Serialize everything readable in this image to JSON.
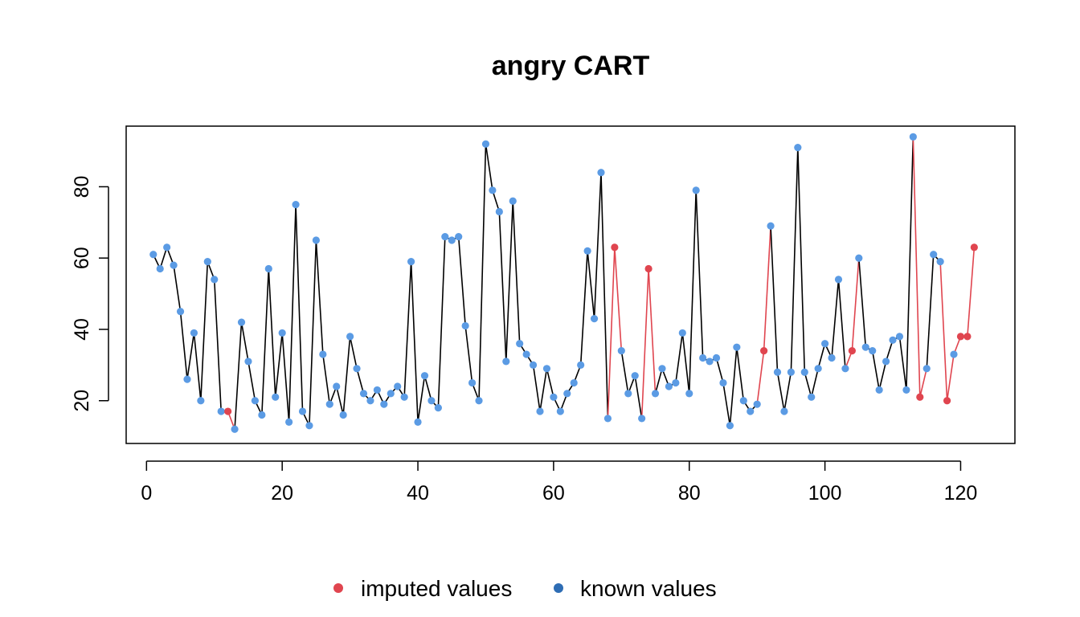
{
  "chart_data": {
    "type": "line",
    "title": "angry CART",
    "xlabel": "",
    "ylabel": "",
    "xlim": [
      -3,
      128
    ],
    "ylim": [
      8,
      97
    ],
    "x_ticks": [
      0,
      20,
      40,
      60,
      80,
      100,
      120
    ],
    "y_ticks": [
      20,
      40,
      60,
      80
    ],
    "grid": false,
    "legend_position": "bottom",
    "colors": {
      "known_point": "#5B9BE4",
      "imputed_point": "#E0454F",
      "known_line": "#000000",
      "imputed_line": "#E0454F",
      "legend_known": "#2E6DB4",
      "legend_imputed": "#E0454F"
    },
    "legend": [
      {
        "label": "imputed values",
        "key": "imputed"
      },
      {
        "label": "known values",
        "key": "known"
      }
    ],
    "x": [
      1,
      2,
      3,
      4,
      5,
      6,
      7,
      8,
      9,
      10,
      11,
      12,
      13,
      14,
      15,
      16,
      17,
      18,
      19,
      20,
      21,
      22,
      23,
      24,
      25,
      26,
      27,
      28,
      29,
      30,
      31,
      32,
      33,
      34,
      35,
      36,
      37,
      38,
      39,
      40,
      41,
      42,
      43,
      44,
      45,
      46,
      47,
      48,
      49,
      50,
      51,
      52,
      53,
      54,
      55,
      56,
      57,
      58,
      59,
      60,
      61,
      62,
      63,
      64,
      65,
      66,
      67,
      68,
      69,
      70,
      71,
      72,
      73,
      74,
      75,
      76,
      77,
      78,
      79,
      80,
      81,
      82,
      83,
      84,
      85,
      86,
      87,
      88,
      89,
      90,
      91,
      92,
      93,
      94,
      95,
      96,
      97,
      98,
      99,
      100,
      101,
      102,
      103,
      104,
      105,
      106,
      107,
      108,
      109,
      110,
      111,
      112,
      113,
      114,
      115,
      116,
      117,
      118,
      119,
      120,
      121,
      122
    ],
    "values": [
      61,
      57,
      63,
      58,
      45,
      26,
      39,
      20,
      59,
      54,
      17,
      17,
      12,
      42,
      31,
      20,
      16,
      57,
      21,
      39,
      14,
      75,
      17,
      13,
      65,
      33,
      19,
      24,
      16,
      38,
      29,
      22,
      20,
      23,
      19,
      22,
      24,
      21,
      59,
      14,
      27,
      20,
      18,
      66,
      65,
      66,
      41,
      25,
      20,
      92,
      79,
      73,
      31,
      76,
      36,
      33,
      30,
      17,
      29,
      21,
      17,
      22,
      25,
      30,
      62,
      43,
      84,
      15,
      63,
      34,
      22,
      27,
      15,
      57,
      22,
      29,
      24,
      25,
      39,
      22,
      79,
      32,
      31,
      32,
      25,
      13,
      35,
      20,
      17,
      19,
      34,
      69,
      28,
      17,
      28,
      91,
      28,
      21,
      29,
      36,
      32,
      54,
      29,
      34,
      60,
      35,
      34,
      23,
      31,
      37,
      38,
      23,
      94,
      21,
      29,
      61,
      59,
      20,
      33,
      38,
      38,
      63
    ],
    "imputed_x": [
      12,
      69,
      74,
      91,
      104,
      114,
      118,
      120,
      121,
      122
    ]
  }
}
